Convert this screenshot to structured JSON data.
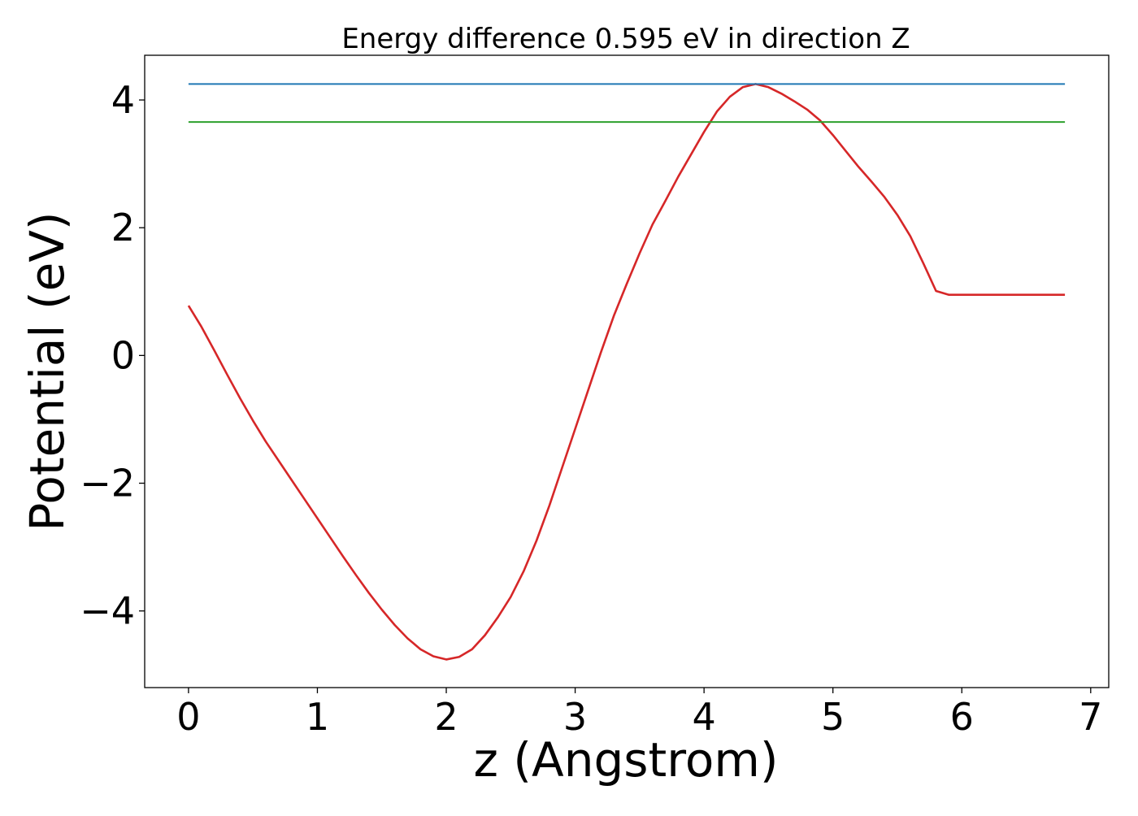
{
  "chart_data": {
    "type": "line",
    "title": "Energy difference 0.595 eV in direction Z",
    "xlabel": "z (Angstrom)",
    "ylabel": "Potential (eV)",
    "xlim": [
      -0.34,
      7.14
    ],
    "ylim": [
      -5.2,
      4.7
    ],
    "xticks": [
      0,
      1,
      2,
      3,
      4,
      5,
      6,
      7
    ],
    "xtick_labels": [
      "0",
      "1",
      "2",
      "3",
      "4",
      "5",
      "6",
      "7"
    ],
    "yticks": [
      -4,
      -2,
      0,
      2,
      4
    ],
    "ytick_labels": [
      "−4",
      "−2",
      "0",
      "2",
      "4"
    ],
    "grid": false,
    "series": [
      {
        "color": "#d62728",
        "x": [
          0.0,
          0.1,
          0.2,
          0.3,
          0.4,
          0.5,
          0.6,
          0.7,
          0.8,
          0.9,
          1.0,
          1.1,
          1.2,
          1.3,
          1.4,
          1.5,
          1.6,
          1.7,
          1.8,
          1.9,
          2.0,
          2.1,
          2.2,
          2.3,
          2.4,
          2.5,
          2.6,
          2.7,
          2.8,
          2.9,
          3.0,
          3.1,
          3.2,
          3.3,
          3.4,
          3.5,
          3.6,
          3.7,
          3.8,
          3.9,
          4.0,
          4.1,
          4.2,
          4.3,
          4.4,
          4.5,
          4.6,
          4.7,
          4.8,
          4.9,
          5.0,
          5.1,
          5.2,
          5.3,
          5.4,
          5.5,
          5.6,
          5.7,
          5.8,
          5.9,
          6.0,
          6.1,
          6.2,
          6.3,
          6.4,
          6.5,
          6.6,
          6.7,
          6.8
        ],
        "y": [
          0.78,
          0.45,
          0.08,
          -0.3,
          -0.67,
          -1.02,
          -1.35,
          -1.65,
          -1.95,
          -2.25,
          -2.55,
          -2.85,
          -3.15,
          -3.44,
          -3.72,
          -3.98,
          -4.22,
          -4.43,
          -4.6,
          -4.71,
          -4.76,
          -4.72,
          -4.6,
          -4.38,
          -4.1,
          -3.78,
          -3.38,
          -2.9,
          -2.35,
          -1.75,
          -1.15,
          -0.55,
          0.05,
          0.62,
          1.12,
          1.6,
          2.05,
          2.42,
          2.8,
          3.15,
          3.5,
          3.82,
          4.05,
          4.2,
          4.25,
          4.2,
          4.1,
          3.98,
          3.85,
          3.68,
          3.45,
          3.2,
          2.95,
          2.72,
          2.48,
          2.2,
          1.87,
          1.45,
          1.01,
          0.95,
          0.95,
          0.95,
          0.95,
          0.95,
          0.95,
          0.95,
          0.95,
          0.95,
          0.95
        ]
      },
      {
        "color": "#1f77b4",
        "x": [
          0.0,
          6.8
        ],
        "y": [
          4.25,
          4.25
        ]
      },
      {
        "color": "#2ca02c",
        "x": [
          0.0,
          6.8
        ],
        "y": [
          3.655,
          3.655
        ]
      }
    ]
  }
}
